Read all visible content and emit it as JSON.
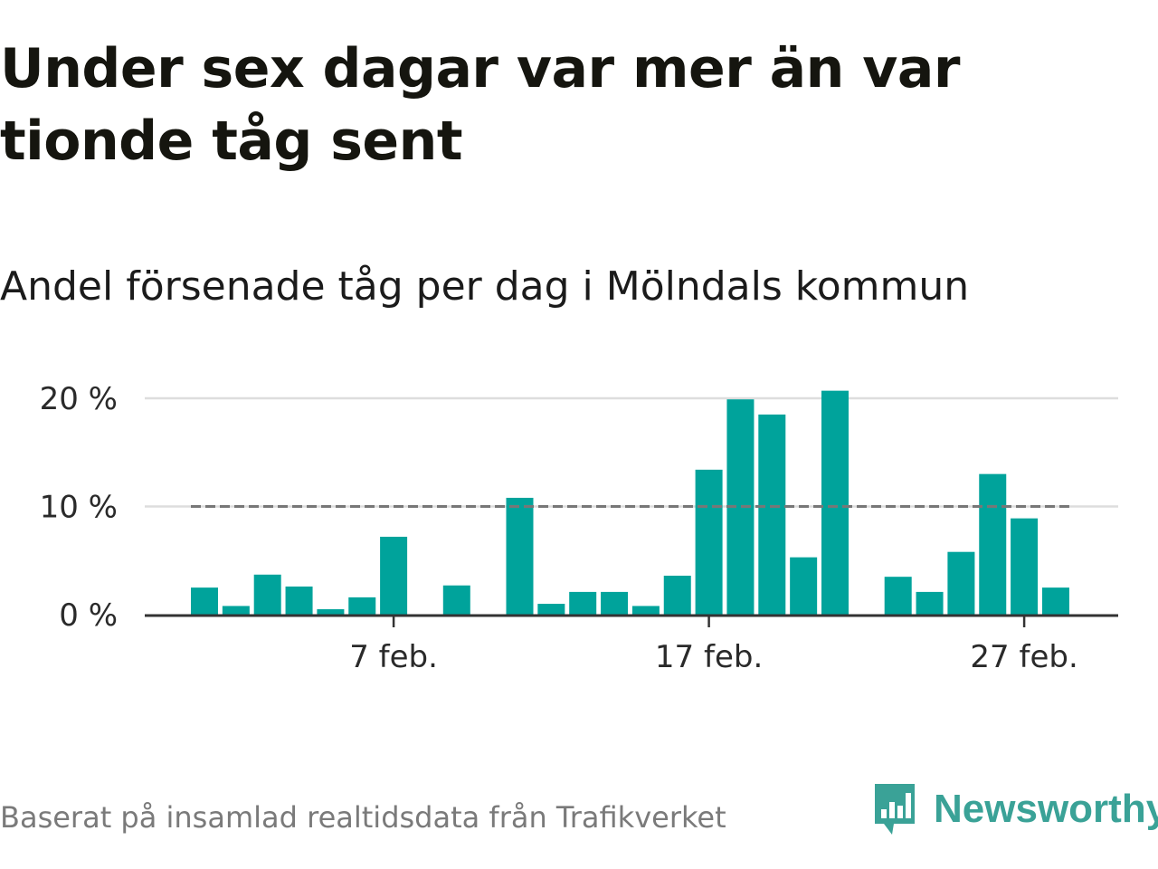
{
  "title": "Under sex dagar var mer än var tionde tåg sent",
  "subtitle": "Andel försenade tåg per dag i Mölndals kommun",
  "source": "Baserat på insamlad realtidsdata från Trafikverket",
  "logo": {
    "text": "Newsworthy",
    "icon": "chat-bars-icon"
  },
  "colors": {
    "bar": "#00a39b",
    "reference_line": "#777777",
    "grid": "#dddddd",
    "axis": "#333333",
    "logo": "#3aa297"
  },
  "chart_data": {
    "type": "bar",
    "x_unit": "date",
    "categories": [
      "2024-02-01",
      "2024-02-02",
      "2024-02-03",
      "2024-02-04",
      "2024-02-05",
      "2024-02-06",
      "2024-02-07",
      "2024-02-08",
      "2024-02-09",
      "2024-02-10",
      "2024-02-11",
      "2024-02-12",
      "2024-02-13",
      "2024-02-14",
      "2024-02-15",
      "2024-02-16",
      "2024-02-17",
      "2024-02-18",
      "2024-02-19",
      "2024-02-20",
      "2024-02-21",
      "2024-02-22",
      "2024-02-23",
      "2024-02-24",
      "2024-02-25",
      "2024-02-26",
      "2024-02-27",
      "2024-02-28"
    ],
    "values": [
      2.5,
      0.8,
      3.7,
      2.6,
      0.5,
      1.6,
      7.2,
      null,
      2.7,
      null,
      10.8,
      1.0,
      2.1,
      2.1,
      0.8,
      3.6,
      13.4,
      19.9,
      18.5,
      5.3,
      20.7,
      null,
      3.5,
      2.1,
      5.8,
      13.0,
      8.9,
      2.5
    ],
    "ylim": [
      0,
      22
    ],
    "yticks": [
      0,
      10,
      20
    ],
    "ytick_labels": [
      "0 %",
      "10 %",
      "20 %"
    ],
    "xticks": [
      "2024-02-07",
      "2024-02-17",
      "2024-02-27"
    ],
    "xtick_labels": [
      "7 feb.",
      "17 feb.",
      "27 feb."
    ],
    "reference_line": 10,
    "grid": true
  }
}
